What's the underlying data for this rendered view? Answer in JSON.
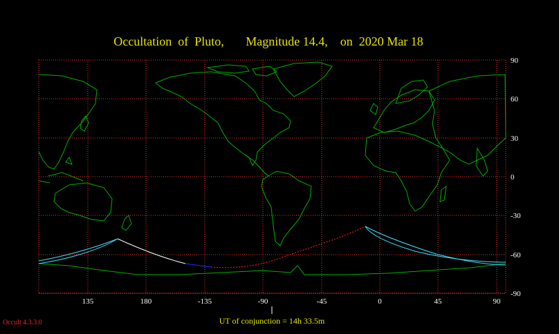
{
  "title": "Occultation  of  Pluto,       Magnitude 14.4,    on  2020 Mar 18",
  "x_ticks": [
    "135",
    "180",
    "-135",
    "-90",
    "-45",
    "0",
    "45",
    "90"
  ],
  "y_ticks": [
    "90",
    "60",
    "30",
    "0",
    "-30",
    "-60",
    "-90"
  ],
  "conjunction_label": "UT of conjunction = 14h 33.5m",
  "version_label": "Occult 4.3.3.0",
  "colors": {
    "background": "#000000",
    "grid": "#ff3030",
    "coastline": "#00b000",
    "title": "#e6e600",
    "tick_labels": "#ffffff",
    "track_center_daylight": "#ffffff",
    "track_center_night": "#2030ff",
    "track_center_below_horizon": "#ff2020",
    "track_limits": "#40e0ff"
  }
}
